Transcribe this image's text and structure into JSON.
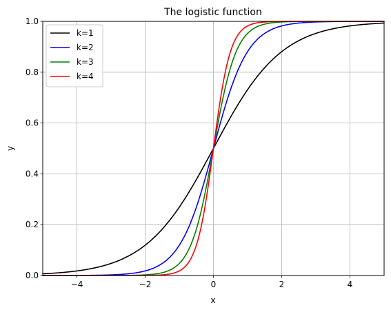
{
  "chart_data": {
    "type": "line",
    "title": "The logistic function",
    "xlabel": "x",
    "ylabel": "y",
    "xlim": [
      -5,
      5
    ],
    "ylim": [
      0,
      1
    ],
    "xticks": [
      -4,
      -2,
      0,
      2,
      4
    ],
    "xtick_labels": [
      "−4",
      "−2",
      "0",
      "2",
      "4"
    ],
    "yticks": [
      0,
      0.2,
      0.4,
      0.6,
      0.8,
      1.0
    ],
    "ytick_labels": [
      "0.0",
      "0.2",
      "0.4",
      "0.6",
      "0.8",
      "1.0"
    ],
    "grid": true,
    "legend_position": "top-left",
    "series": [
      {
        "name": "k=1",
        "k": 1,
        "color": "#000000",
        "x": [
          -5,
          -4,
          -3,
          -2,
          -1,
          -0.5,
          0,
          0.5,
          1,
          2,
          3,
          4,
          5
        ],
        "y": [
          0.0067,
          0.018,
          0.047,
          0.119,
          0.269,
          0.378,
          0.5,
          0.622,
          0.731,
          0.881,
          0.953,
          0.982,
          0.993
        ]
      },
      {
        "name": "k=2",
        "k": 2,
        "color": "#0000ff",
        "x": [
          -5,
          -3,
          -2,
          -1.5,
          -1,
          -0.5,
          0,
          0.5,
          1,
          1.5,
          2,
          3,
          5
        ],
        "y": [
          0.0,
          0.002,
          0.018,
          0.047,
          0.119,
          0.269,
          0.5,
          0.731,
          0.881,
          0.953,
          0.982,
          0.998,
          1.0
        ]
      },
      {
        "name": "k=3",
        "k": 3,
        "color": "#008000",
        "x": [
          -5,
          -2,
          -1.5,
          -1,
          -0.5,
          -0.25,
          0,
          0.25,
          0.5,
          1,
          1.5,
          2,
          5
        ],
        "y": [
          0.0,
          0.002,
          0.011,
          0.047,
          0.182,
          0.321,
          0.5,
          0.679,
          0.818,
          0.953,
          0.989,
          0.998,
          1.0
        ]
      },
      {
        "name": "k=4",
        "k": 4,
        "color": "#ff0000",
        "x": [
          -5,
          -1.5,
          -1,
          -0.5,
          -0.25,
          0,
          0.25,
          0.5,
          1,
          1.5,
          5
        ],
        "y": [
          0.0,
          0.002,
          0.018,
          0.119,
          0.269,
          0.5,
          0.731,
          0.881,
          0.982,
          0.998,
          1.0
        ]
      }
    ]
  }
}
